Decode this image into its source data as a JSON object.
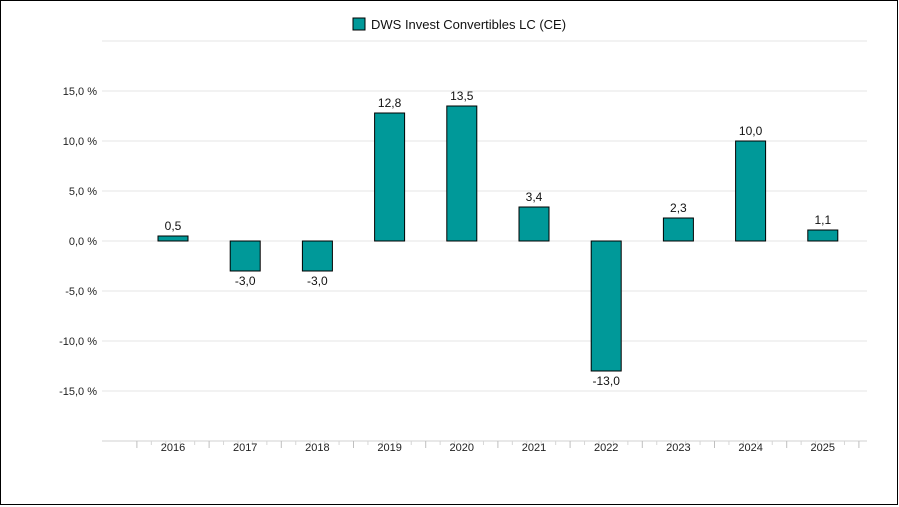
{
  "chart_data": {
    "type": "bar",
    "categories": [
      "2016",
      "2017",
      "2018",
      "2019",
      "2020",
      "2021",
      "2022",
      "2023",
      "2024",
      "2025"
    ],
    "series": [
      {
        "name": "DWS Invest Convertibles LC (CE)",
        "values": [
          0.5,
          -3.0,
          -3.0,
          12.8,
          13.5,
          3.4,
          -13.0,
          2.3,
          10.0,
          1.1
        ]
      }
    ],
    "data_labels": [
      "0,5",
      "-3,0",
      "-3,0",
      "12,8",
      "13,5",
      "3,4",
      "-13,0",
      "2,3",
      "10,0",
      "1,1"
    ],
    "y_ticks": [
      15,
      10,
      5,
      0,
      -5,
      -10,
      -15
    ],
    "y_tick_labels": [
      "15,0 %",
      "10,0 %",
      "5,0 %",
      "0,0 %",
      "-5,0 %",
      "-10,0 %",
      "-15,0 %"
    ],
    "ylim": [
      -20,
      20
    ],
    "legend_position": "top-center",
    "grid": true,
    "bar_color": "#009999",
    "grid_color": "#e6e6e6"
  }
}
